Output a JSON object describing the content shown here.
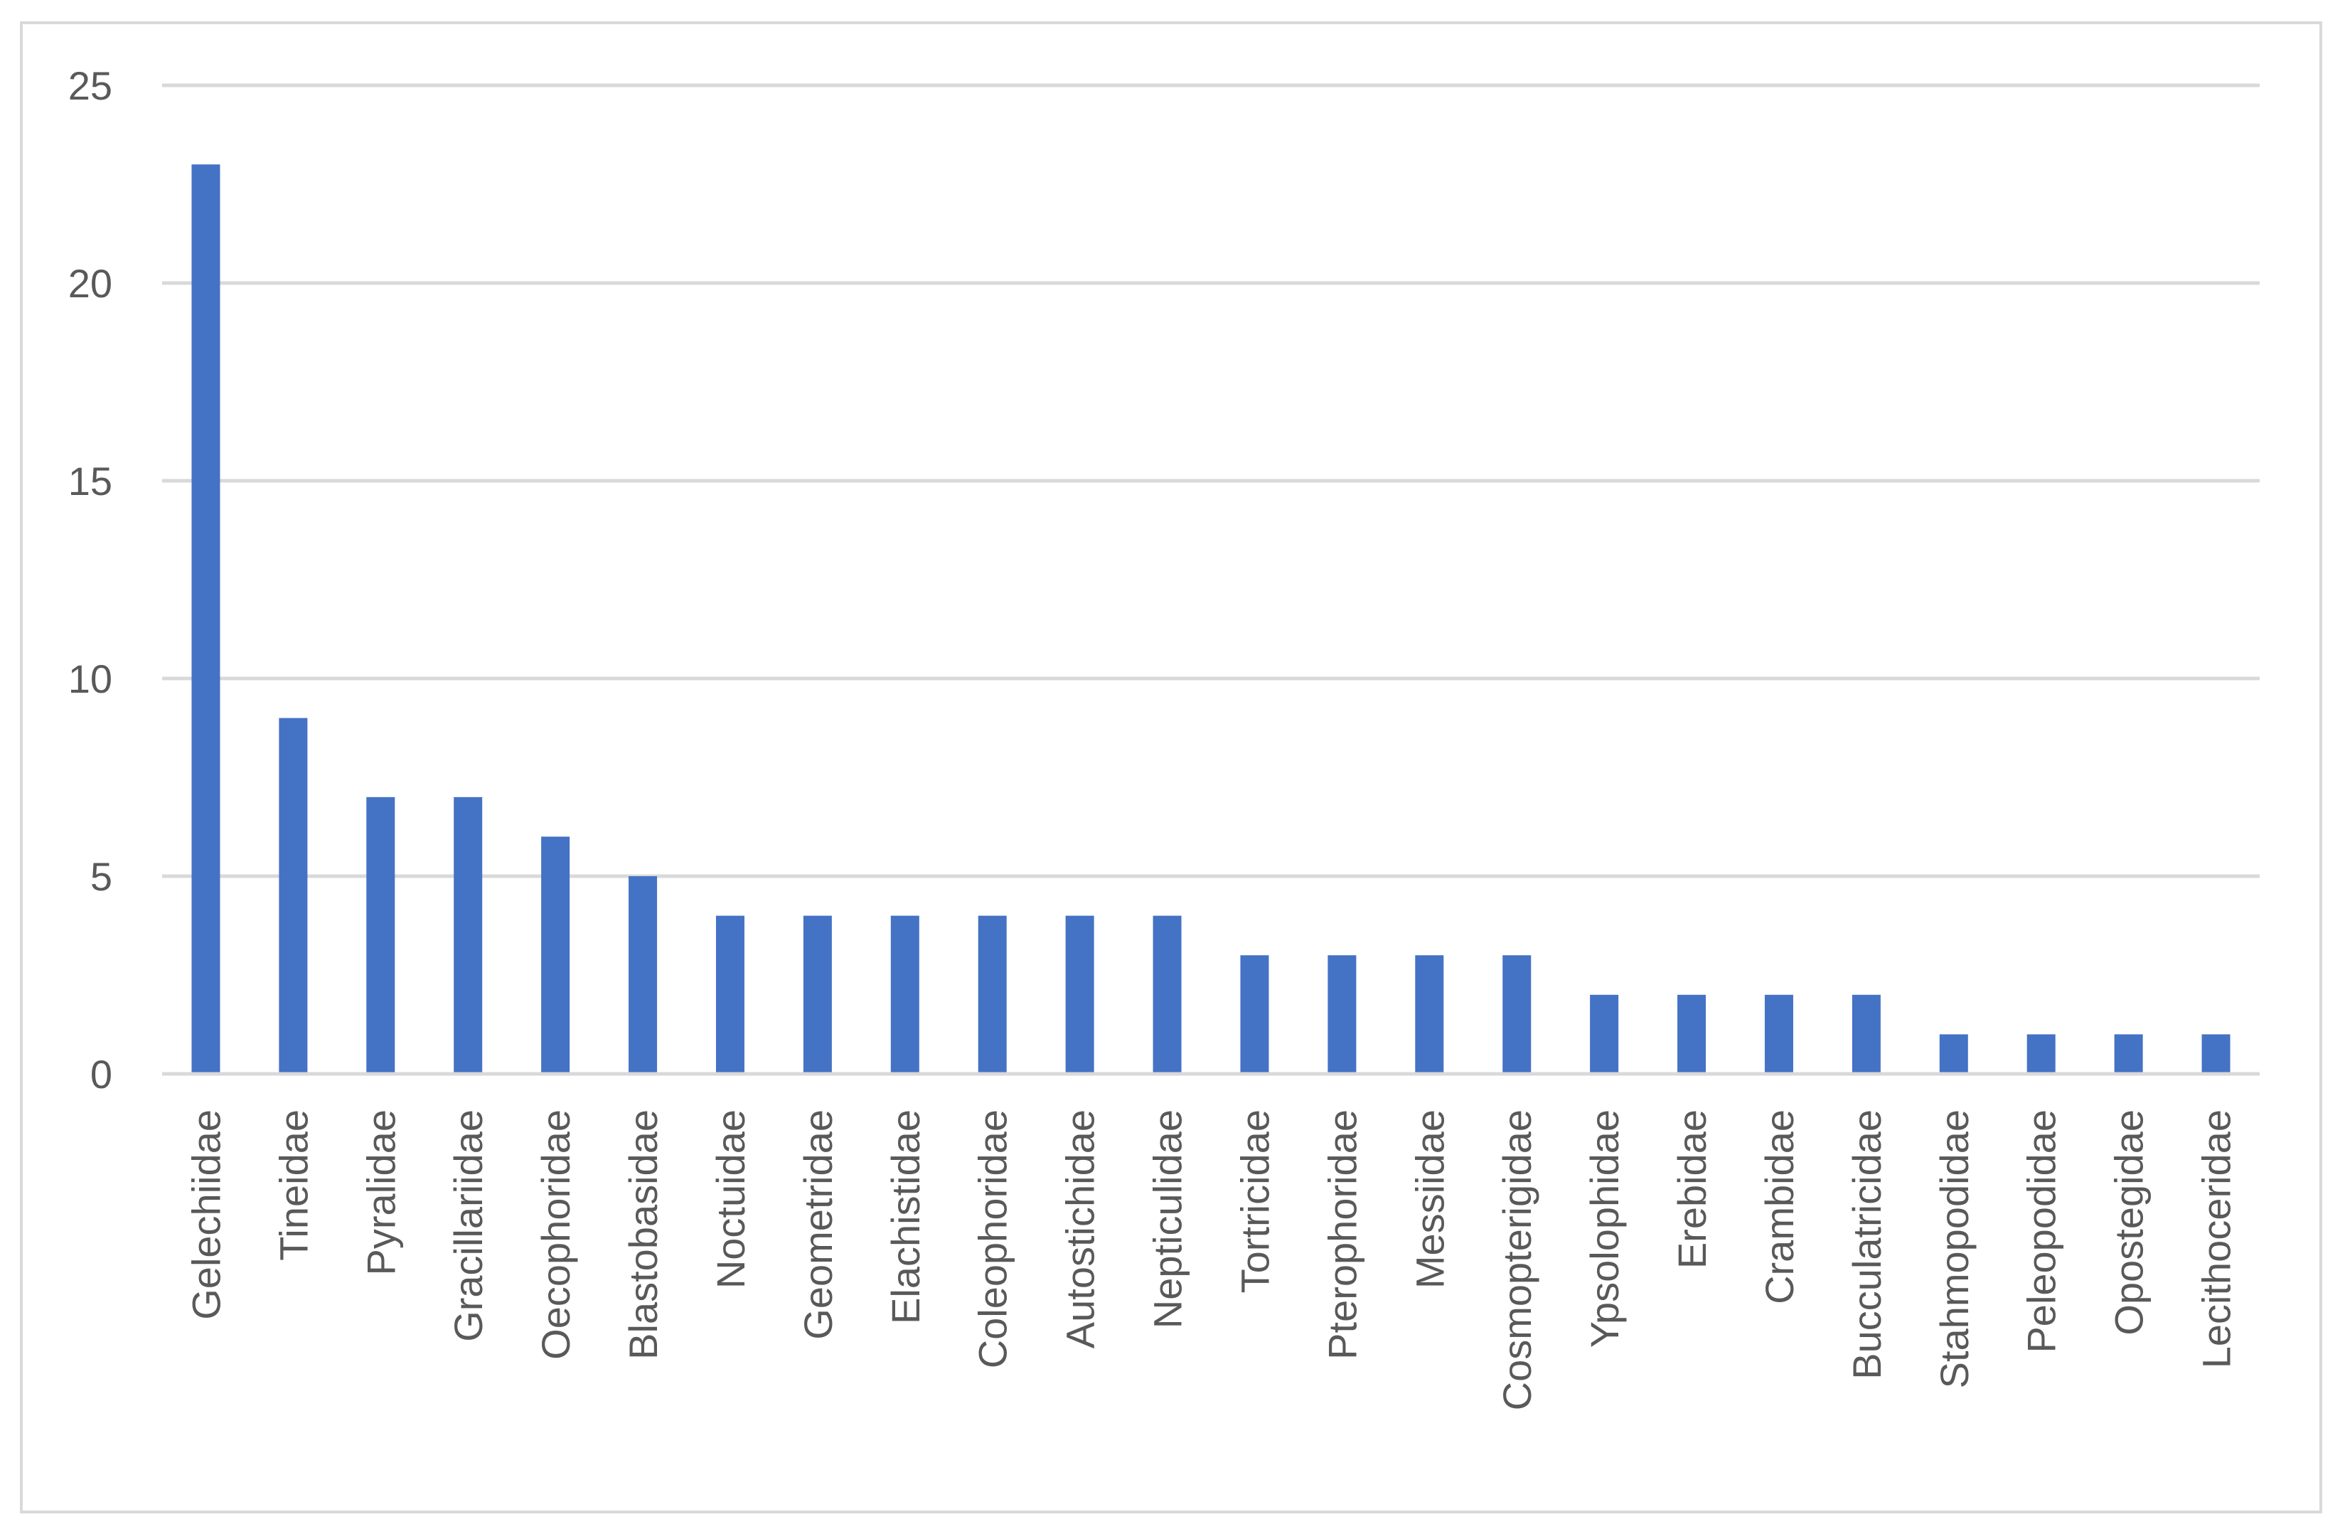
{
  "chart_data": {
    "type": "bar",
    "title": "",
    "xlabel": "",
    "ylabel": "",
    "categories": [
      "Gelechiidae",
      "Tineidae",
      "Pyralidae",
      "Gracillariidae",
      "Oecophoridae",
      "Blastobasidae",
      "Noctuidae",
      "Geometridae",
      "Elachistidae",
      "Coleophoridae",
      "Autostichidae",
      "Nepticulidae",
      "Tortricidae",
      "Pterophoridae",
      "Messiidae",
      "Cosmopterigidae",
      "Ypsolophidae",
      "Erebidae",
      "Crambidae",
      "Bucculatricidae",
      "Stahmopodidae",
      "Peleopodidae",
      "Opostegidae",
      "Lecithoceridae"
    ],
    "values": [
      23,
      9,
      7,
      7,
      6,
      5,
      4,
      4,
      4,
      4,
      4,
      4,
      3,
      3,
      3,
      3,
      2,
      2,
      2,
      2,
      1,
      1,
      1,
      1
    ],
    "ylim": [
      0,
      25
    ],
    "yticks": [
      "0",
      "5",
      "10",
      "15",
      "20",
      "25"
    ],
    "grid": true,
    "legend": "none",
    "colors": {
      "bar": "#4472c4",
      "grid": "#d9d9d9",
      "text": "#595959",
      "border": "#d9d9d9"
    }
  }
}
